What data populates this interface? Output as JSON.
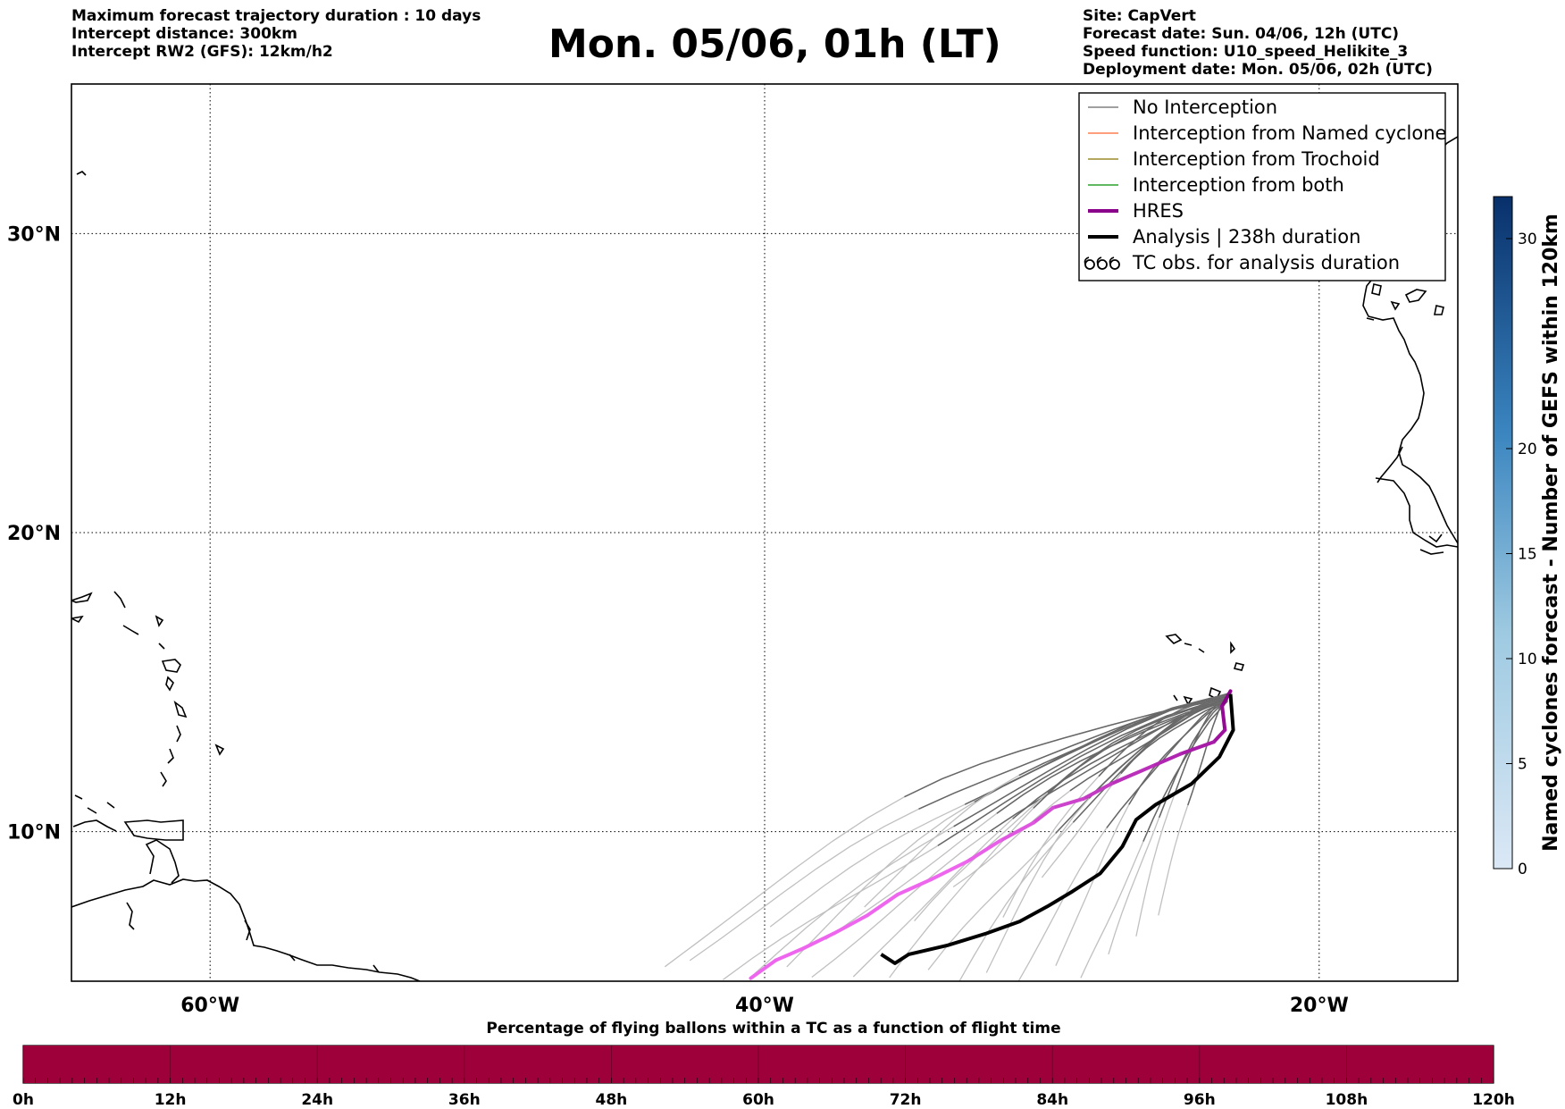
{
  "header": {
    "left_lines": [
      "Maximum forecast trajectory duration : 10 days",
      "Intercept distance: 300km",
      "Intercept RW2 (GFS):  12km/h2"
    ],
    "title": "Mon. 05/06, 01h (LT)",
    "right_lines": [
      "Site: CapVert",
      "Forecast date: Sun. 04/06, 12h (UTC)",
      "Speed function: U10_speed_Helikite_3",
      "Deployment date: Mon. 05/06, 02h (UTC)"
    ]
  },
  "map": {
    "lon_range": [
      -65,
      -15
    ],
    "lat_range": [
      5,
      35
    ],
    "lon_ticks": [
      {
        "value": -60,
        "label": "60°W"
      },
      {
        "value": -40,
        "label": "40°W"
      },
      {
        "value": -20,
        "label": "20°W"
      }
    ],
    "lat_ticks": [
      {
        "value": 10,
        "label": "10°N"
      },
      {
        "value": 20,
        "label": "20°N"
      },
      {
        "value": 30,
        "label": "30°N"
      }
    ],
    "grid": "dotted",
    "legend_position": "top-right",
    "legend": [
      {
        "label": "No Interception",
        "color": "#808080",
        "style": "line-thin"
      },
      {
        "label": "Interception from Named cyclone",
        "color": "#ff7f50",
        "style": "line-thin"
      },
      {
        "label": "Interception from Trochoid",
        "color": "#9b8a2a",
        "style": "line-thin"
      },
      {
        "label": "Interception from both",
        "color": "#2ca02c",
        "style": "line-thin"
      },
      {
        "label": "HRES",
        "color": "#8b008b",
        "style": "line-thick"
      },
      {
        "label": "Analysis | 238h duration",
        "color": "#000000",
        "style": "line-thick"
      },
      {
        "label": "TC obs. for analysis duration",
        "color": "#000000",
        "style": "tc-symbol",
        "icon": "tropical-cyclone-icon"
      }
    ],
    "tracks": {
      "hres_color_start": "#8b008b",
      "hres_color_end": "#ee66ee",
      "hres": [
        [
          -23.2,
          14.7
        ],
        [
          -23.5,
          14.2
        ],
        [
          -23.4,
          13.4
        ],
        [
          -23.8,
          13.0
        ],
        [
          -25.0,
          12.6
        ],
        [
          -26.0,
          12.2
        ],
        [
          -27.5,
          11.6
        ],
        [
          -28.5,
          11.1
        ],
        [
          -29.6,
          10.8
        ],
        [
          -30.3,
          10.3
        ],
        [
          -31.5,
          9.7
        ],
        [
          -32.7,
          9.0
        ],
        [
          -34.0,
          8.4
        ],
        [
          -35.2,
          7.9
        ],
        [
          -36.3,
          7.2
        ],
        [
          -37.5,
          6.6
        ],
        [
          -38.6,
          6.1
        ],
        [
          -39.6,
          5.7
        ],
        [
          -40.5,
          5.1
        ]
      ],
      "analysis": [
        [
          -23.2,
          14.6
        ],
        [
          -23.1,
          13.4
        ],
        [
          -23.6,
          12.5
        ],
        [
          -24.6,
          11.6
        ],
        [
          -25.9,
          10.9
        ],
        [
          -26.6,
          10.4
        ],
        [
          -27.1,
          9.5
        ],
        [
          -27.9,
          8.6
        ],
        [
          -28.9,
          8.0
        ],
        [
          -29.8,
          7.5
        ],
        [
          -30.8,
          7.0
        ],
        [
          -32.0,
          6.6
        ],
        [
          -33.4,
          6.2
        ],
        [
          -34.8,
          5.9
        ],
        [
          -35.3,
          5.6
        ],
        [
          -35.8,
          5.9
        ]
      ],
      "ensemble_dark_color": "#666666",
      "ensemble_light_color": "#c0c0c0",
      "ensemble_start": [
        -23.3,
        14.5
      ],
      "ensemble_ends": [
        [
          -41.5,
          5.0
        ],
        [
          -40.5,
          5.2
        ],
        [
          -39.2,
          5.6
        ],
        [
          -38.3,
          5.2
        ],
        [
          -36.8,
          5.1
        ],
        [
          -35.5,
          5.0
        ],
        [
          -34.1,
          5.3
        ],
        [
          -33.0,
          5.0
        ],
        [
          -32.0,
          5.4
        ],
        [
          -30.9,
          5.0
        ],
        [
          -29.5,
          5.5
        ],
        [
          -28.6,
          5.0
        ],
        [
          -27.6,
          5.8
        ],
        [
          -26.6,
          6.5
        ],
        [
          -25.8,
          7.3
        ],
        [
          -42.7,
          5.8
        ],
        [
          -43.6,
          5.5
        ],
        [
          -37.8,
          6.3
        ],
        [
          -34.6,
          6.9
        ],
        [
          -31.4,
          7.1
        ],
        [
          -39.8,
          6.9
        ],
        [
          -36.4,
          7.6
        ],
        [
          -33.2,
          8.2
        ],
        [
          -30.0,
          8.4
        ]
      ]
    },
    "coastlines_label": "coastlines"
  },
  "colorbar_right": {
    "label": "Named cyclones forecast - Number of GEFS within 120km",
    "ticks": [
      "0",
      "5",
      "10",
      "15",
      "20",
      "30"
    ],
    "tick_values": [
      0,
      5,
      10,
      15,
      20,
      30
    ],
    "max": 32,
    "color_low": "#dbe8f6",
    "color_high": "#08306b"
  },
  "timebar": {
    "title": "Percentage of flying ballons within a TC as a function of flight time",
    "ticks": [
      "0h",
      "12h",
      "24h",
      "36h",
      "48h",
      "60h",
      "72h",
      "84h",
      "96h",
      "108h",
      "120h"
    ],
    "fill_color": "#9e003a",
    "fill_fraction": 1.0
  }
}
